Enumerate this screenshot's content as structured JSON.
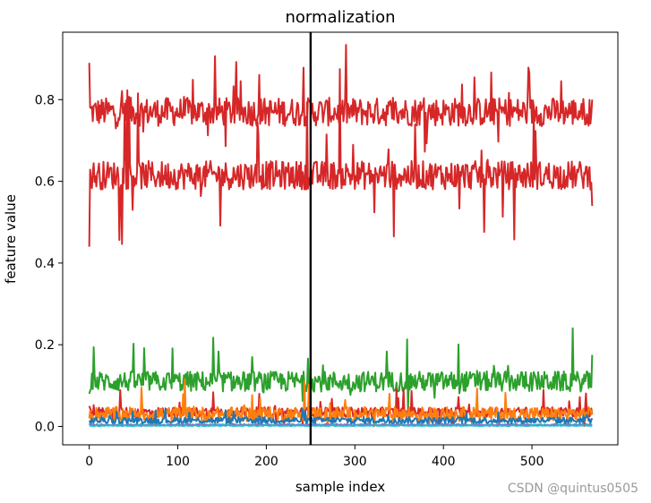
{
  "chart_data": {
    "type": "line",
    "title": "normalization",
    "xlabel": "sample index",
    "ylabel": "feature value",
    "xlim": [
      -30,
      597
    ],
    "ylim": [
      -0.045,
      0.965
    ],
    "xticks": [
      0,
      100,
      200,
      300,
      400,
      500
    ],
    "xtick_labels": [
      "0",
      "100",
      "200",
      "300",
      "400",
      "500"
    ],
    "yticks": [
      0.0,
      0.2,
      0.4,
      0.6,
      0.8
    ],
    "ytick_labels": [
      "0.0",
      "0.2",
      "0.4",
      "0.6",
      "0.8"
    ],
    "grid": false,
    "n_samples": 569,
    "vertical_line": {
      "x": 250,
      "color": "#000000"
    },
    "series": [
      {
        "color": "#d62728",
        "mean": 0.77,
        "noise": 0.035,
        "spike": 0.12,
        "start": 0.89,
        "end": 0.8
      },
      {
        "color": "#d62728",
        "mean": 0.615,
        "noise": 0.035,
        "spike": 0.2,
        "start": 0.44,
        "end": 0.54
      },
      {
        "color": "#2ca02c",
        "mean": 0.11,
        "noise": 0.025,
        "spike": 0.09,
        "start": 0.08,
        "end": 0.175
      },
      {
        "color": "#d62728",
        "mean": 0.035,
        "noise": 0.012,
        "spike": 0.05,
        "start": 0.05,
        "end": 0.03
      },
      {
        "color": "#ff7f0e",
        "mean": 0.03,
        "noise": 0.018,
        "spike": 0.06,
        "start": 0.02,
        "end": 0.04
      },
      {
        "color": "#1f77b4",
        "mean": 0.015,
        "noise": 0.008,
        "spike": 0.02,
        "start": 0.01,
        "end": 0.02
      },
      {
        "color": "#9467bd",
        "mean": 0.004,
        "noise": 0.002,
        "spike": 0.005,
        "start": 0.004,
        "end": 0.004
      },
      {
        "color": "#17becf",
        "mean": 0.002,
        "noise": 0.001,
        "spike": 0.002,
        "start": 0.002,
        "end": 0.002
      }
    ]
  },
  "watermark": "CSDN @quintus0505"
}
